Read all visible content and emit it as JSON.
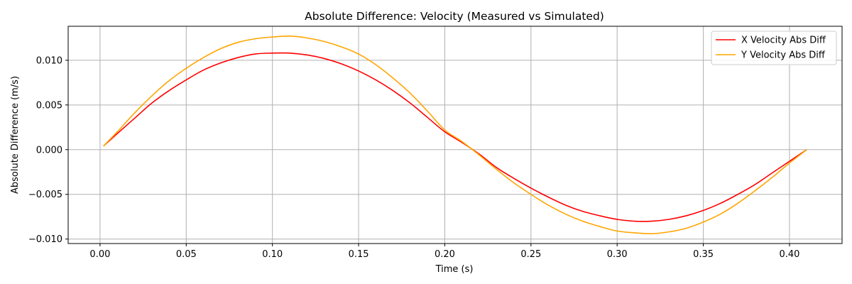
{
  "chart_data": {
    "type": "line",
    "title": "Absolute Difference: Velocity (Measured vs Simulated)",
    "xlabel": "Time (s)",
    "ylabel": "Absolute Difference (m/s)",
    "xlim": [
      -0.0185,
      0.4305
    ],
    "ylim": [
      -0.0105,
      0.0138
    ],
    "x_ticks": [
      0.0,
      0.05,
      0.1,
      0.15,
      0.2,
      0.25,
      0.3,
      0.35,
      0.4
    ],
    "x_tick_labels": [
      "0.00",
      "0.05",
      "0.10",
      "0.15",
      "0.20",
      "0.25",
      "0.30",
      "0.35",
      "0.40"
    ],
    "y_ticks": [
      -0.01,
      -0.005,
      0.0,
      0.005,
      0.01
    ],
    "y_tick_labels": [
      "−0.010",
      "−0.005",
      "0.000",
      "0.005",
      "0.010"
    ],
    "grid": true,
    "legend_position": "top-right",
    "x": [
      0.002,
      0.01,
      0.02,
      0.03,
      0.04,
      0.05,
      0.06,
      0.07,
      0.08,
      0.09,
      0.1,
      0.11,
      0.12,
      0.13,
      0.14,
      0.15,
      0.16,
      0.17,
      0.18,
      0.19,
      0.2,
      0.21,
      0.22,
      0.23,
      0.24,
      0.25,
      0.26,
      0.27,
      0.28,
      0.29,
      0.3,
      0.31,
      0.32,
      0.33,
      0.34,
      0.35,
      0.36,
      0.37,
      0.38,
      0.39,
      0.4,
      0.41
    ],
    "series": [
      {
        "name": "X Velocity Abs Diff",
        "color": "#ff0000",
        "values": [
          0.0004,
          0.0018,
          0.0035,
          0.0052,
          0.0066,
          0.0078,
          0.0089,
          0.0097,
          0.0103,
          0.0107,
          0.0108,
          0.0108,
          0.0106,
          0.0102,
          0.0096,
          0.0088,
          0.0078,
          0.0066,
          0.0052,
          0.0036,
          0.002,
          0.0008,
          -0.0005,
          -0.002,
          -0.0032,
          -0.0043,
          -0.0053,
          -0.0062,
          -0.0069,
          -0.0074,
          -0.0078,
          -0.008,
          -0.008,
          -0.0078,
          -0.0074,
          -0.0068,
          -0.006,
          -0.005,
          -0.0039,
          -0.0026,
          -0.0013,
          0.0
        ]
      },
      {
        "name": "Y Velocity Abs Diff",
        "color": "#ffa500",
        "values": [
          0.0004,
          0.002,
          0.0041,
          0.006,
          0.0077,
          0.0091,
          0.0103,
          0.0113,
          0.012,
          0.0124,
          0.0126,
          0.0127,
          0.0125,
          0.0121,
          0.0115,
          0.0107,
          0.0095,
          0.008,
          0.0063,
          0.0043,
          0.0022,
          0.0009,
          -0.0006,
          -0.0022,
          -0.0037,
          -0.005,
          -0.0062,
          -0.0072,
          -0.008,
          -0.0086,
          -0.0091,
          -0.0093,
          -0.0094,
          -0.0092,
          -0.0088,
          -0.0081,
          -0.0072,
          -0.006,
          -0.0046,
          -0.0031,
          -0.0015,
          0.0
        ]
      }
    ]
  }
}
